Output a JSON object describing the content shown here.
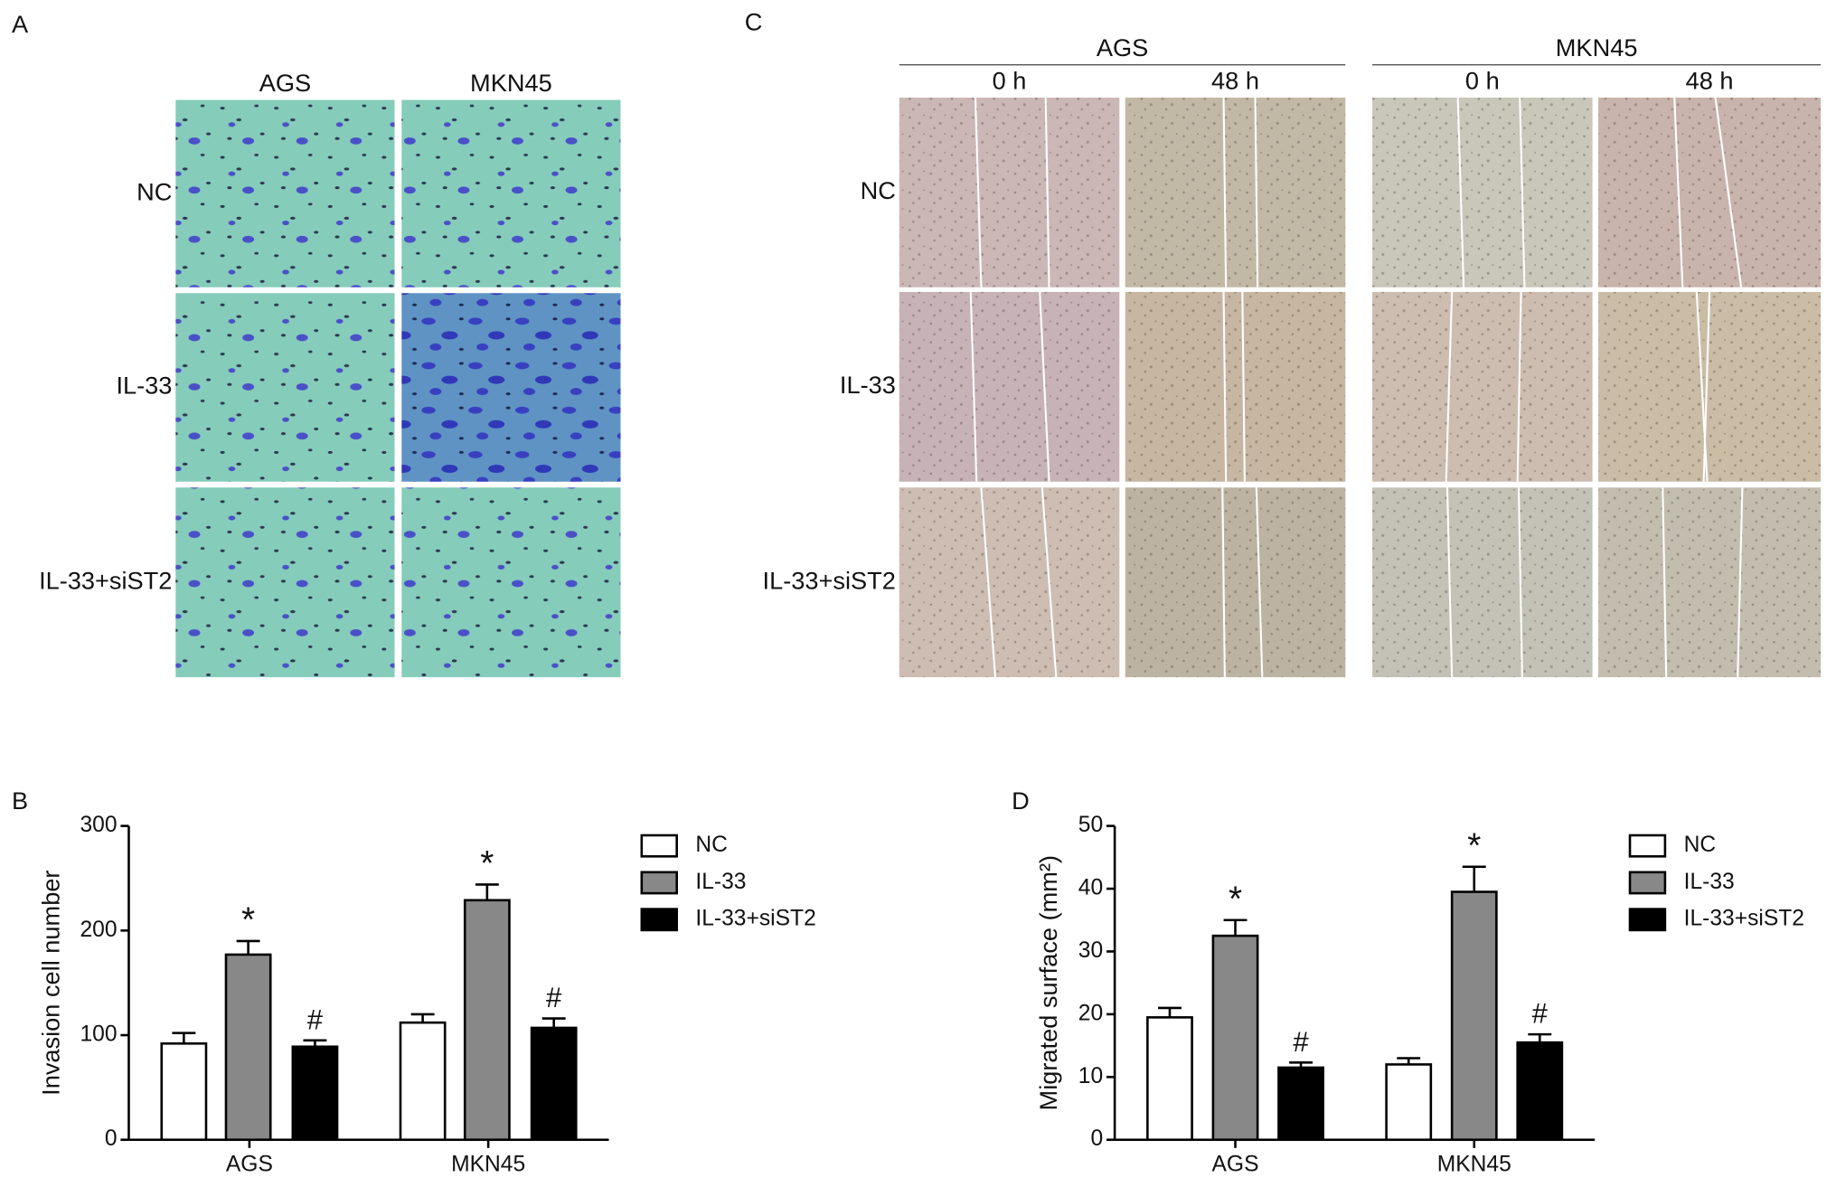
{
  "figure": {
    "panel_a": {
      "label": "A",
      "columns": [
        "AGS",
        "MKN45"
      ],
      "rows": [
        "NC",
        "IL-33",
        "IL-33+siST2"
      ]
    },
    "panel_c": {
      "label": "C",
      "groups": [
        {
          "name": "AGS",
          "columns": [
            "0 h",
            "48 h"
          ]
        },
        {
          "name": "MKN45",
          "columns": [
            "0 h",
            "48 h"
          ]
        }
      ],
      "rows": [
        "NC",
        "IL-33",
        "IL-33+siST2"
      ]
    }
  },
  "chart_data": [
    {
      "type": "bar",
      "panel_label": "B",
      "y_label": "Invasion cell number",
      "categories": [
        "AGS",
        "MKN45"
      ],
      "series": [
        {
          "name": "NC",
          "color": "#ffffff",
          "values": [
            92,
            112
          ],
          "errors": [
            10,
            8
          ]
        },
        {
          "name": "IL-33",
          "color": "#888888",
          "values": [
            177,
            229
          ],
          "errors": [
            13,
            15
          ],
          "markers": [
            "*",
            "*"
          ]
        },
        {
          "name": "IL-33+siST2",
          "color": "#000000",
          "values": [
            89,
            107
          ],
          "errors": [
            6,
            9
          ],
          "markers": [
            "#",
            "#"
          ]
        }
      ],
      "ylim": [
        0,
        300
      ],
      "yticks": [
        0,
        100,
        200,
        300
      ]
    },
    {
      "type": "bar",
      "panel_label": "D",
      "y_label": "Migrated surface (mm²)",
      "categories": [
        "AGS",
        "MKN45"
      ],
      "series": [
        {
          "name": "NC",
          "color": "#ffffff",
          "values": [
            19.5,
            12
          ],
          "errors": [
            1.5,
            1
          ]
        },
        {
          "name": "IL-33",
          "color": "#888888",
          "values": [
            32.5,
            39.5
          ],
          "errors": [
            2.5,
            4
          ],
          "markers": [
            "*",
            "*"
          ]
        },
        {
          "name": "IL-33+siST2",
          "color": "#000000",
          "values": [
            11.5,
            15.5
          ],
          "errors": [
            0.8,
            1.3
          ],
          "markers": [
            "#",
            "#"
          ]
        }
      ],
      "ylim": [
        0,
        50
      ],
      "yticks": [
        0,
        10,
        20,
        30,
        40,
        50
      ]
    }
  ]
}
